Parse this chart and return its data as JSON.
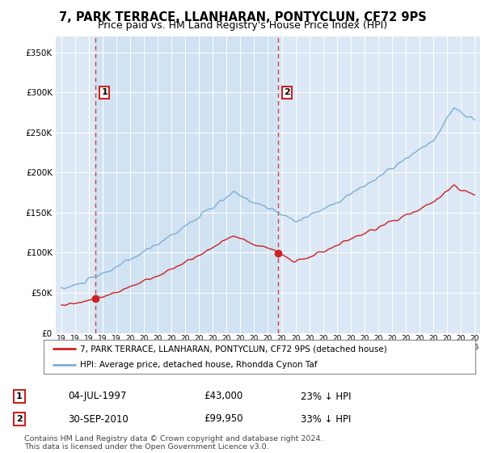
{
  "title": "7, PARK TERRACE, LLANHARAN, PONTYCLUN, CF72 9PS",
  "subtitle": "Price paid vs. HM Land Registry's House Price Index (HPI)",
  "ylim": [
    0,
    370000
  ],
  "yticks": [
    0,
    50000,
    100000,
    150000,
    200000,
    250000,
    300000,
    350000
  ],
  "ytick_labels": [
    "£0",
    "£50K",
    "£100K",
    "£150K",
    "£200K",
    "£250K",
    "£300K",
    "£350K"
  ],
  "sale1_date": 1997.5,
  "sale1_price": 43000,
  "sale1_label": "1",
  "sale1_text": "04-JUL-1997",
  "sale1_amount": "£43,000",
  "sale1_hpi": "23% ↓ HPI",
  "sale2_date": 2010.75,
  "sale2_price": 99950,
  "sale2_label": "2",
  "sale2_text": "30-SEP-2010",
  "sale2_amount": "£99,950",
  "sale2_hpi": "33% ↓ HPI",
  "hpi_color": "#7bafd4",
  "price_color": "#cc2222",
  "vline_color": "#cc2222",
  "bg_color": "#dce8f5",
  "shade_color": "#c8ddf0",
  "legend_label_red": "7, PARK TERRACE, LLANHARAN, PONTYCLUN, CF72 9PS (detached house)",
  "legend_label_blue": "HPI: Average price, detached house, Rhondda Cynon Taf",
  "footer": "Contains HM Land Registry data © Crown copyright and database right 2024.\nThis data is licensed under the Open Government Licence v3.0.",
  "title_fontsize": 10.5,
  "subtitle_fontsize": 9,
  "tick_fontsize": 7.5
}
